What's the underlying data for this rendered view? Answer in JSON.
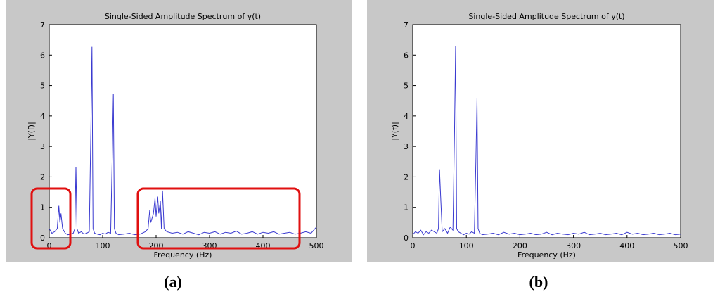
{
  "chart_data": [
    {
      "type": "line",
      "title": "Single-Sided Amplitude Spectrum of y(t)",
      "xlabel": "Frequency (Hz)",
      "ylabel": "|Y(f)|",
      "panel_label": "(a)",
      "color": "#3a3ad0",
      "x": [
        0,
        5,
        10,
        15,
        18,
        20,
        22,
        25,
        30,
        35,
        40,
        45,
        48,
        50,
        52,
        55,
        60,
        65,
        70,
        75,
        78,
        80,
        82,
        85,
        90,
        95,
        100,
        105,
        110,
        115,
        118,
        120,
        122,
        125,
        130,
        140,
        150,
        160,
        170,
        180,
        185,
        188,
        190,
        195,
        198,
        200,
        203,
        205,
        208,
        210,
        212,
        215,
        220,
        230,
        240,
        250,
        260,
        270,
        280,
        290,
        300,
        310,
        320,
        330,
        340,
        350,
        360,
        370,
        380,
        390,
        400,
        410,
        420,
        430,
        440,
        450,
        460,
        470,
        480,
        490,
        500
      ],
      "values": [
        0.3,
        0.15,
        0.2,
        0.3,
        1.05,
        0.5,
        0.8,
        0.3,
        0.15,
        0.1,
        0.12,
        0.15,
        0.3,
        2.33,
        0.3,
        0.15,
        0.2,
        0.12,
        0.15,
        0.2,
        3.6,
        6.27,
        0.3,
        0.15,
        0.12,
        0.1,
        0.15,
        0.12,
        0.18,
        0.15,
        2.7,
        4.72,
        0.3,
        0.15,
        0.1,
        0.12,
        0.15,
        0.1,
        0.12,
        0.2,
        0.3,
        0.9,
        0.5,
        0.8,
        1.3,
        0.7,
        1.35,
        0.8,
        1.2,
        0.3,
        1.55,
        0.3,
        0.2,
        0.15,
        0.18,
        0.12,
        0.2,
        0.15,
        0.1,
        0.18,
        0.15,
        0.2,
        0.12,
        0.18,
        0.15,
        0.22,
        0.12,
        0.15,
        0.2,
        0.12,
        0.18,
        0.15,
        0.2,
        0.12,
        0.15,
        0.18,
        0.12,
        0.15,
        0.2,
        0.15,
        0.35
      ],
      "xlim": [
        0,
        500
      ],
      "xticks": [
        0,
        100,
        200,
        300,
        400,
        500
      ],
      "ylim": [
        0,
        7
      ],
      "yticks": [
        0,
        1,
        2,
        3,
        4,
        5,
        6,
        7
      ]
    },
    {
      "type": "line",
      "title": "Single-Sided Amplitude Spectrum of y(t)",
      "xlabel": "Frequency (Hz)",
      "ylabel": "|Y(f)|",
      "panel_label": "(b)",
      "color": "#3a3ad0",
      "x": [
        0,
        5,
        10,
        15,
        20,
        25,
        30,
        35,
        40,
        45,
        48,
        50,
        52,
        55,
        60,
        65,
        70,
        75,
        78,
        80,
        82,
        85,
        90,
        95,
        100,
        105,
        110,
        115,
        118,
        120,
        122,
        125,
        130,
        140,
        150,
        160,
        170,
        180,
        190,
        200,
        210,
        220,
        230,
        240,
        250,
        260,
        270,
        280,
        290,
        300,
        310,
        320,
        330,
        340,
        350,
        360,
        370,
        380,
        390,
        400,
        410,
        420,
        430,
        440,
        450,
        460,
        470,
        480,
        490,
        500
      ],
      "values": [
        0.1,
        0.2,
        0.15,
        0.25,
        0.1,
        0.2,
        0.15,
        0.25,
        0.2,
        0.15,
        0.3,
        2.25,
        1.4,
        0.2,
        0.3,
        0.15,
        0.35,
        0.25,
        3.5,
        6.3,
        0.3,
        0.2,
        0.15,
        0.1,
        0.15,
        0.12,
        0.2,
        0.15,
        2.65,
        4.58,
        0.3,
        0.15,
        0.1,
        0.12,
        0.15,
        0.1,
        0.18,
        0.12,
        0.15,
        0.1,
        0.12,
        0.15,
        0.1,
        0.12,
        0.18,
        0.1,
        0.15,
        0.12,
        0.1,
        0.15,
        0.12,
        0.18,
        0.1,
        0.12,
        0.15,
        0.1,
        0.12,
        0.15,
        0.1,
        0.18,
        0.12,
        0.15,
        0.1,
        0.12,
        0.15,
        0.1,
        0.12,
        0.15,
        0.1,
        0.12
      ],
      "xlim": [
        0,
        500
      ],
      "xticks": [
        0,
        100,
        200,
        300,
        400,
        500
      ],
      "ylim": [
        0,
        7
      ],
      "yticks": [
        0,
        1,
        2,
        3,
        4,
        5,
        6,
        7
      ]
    }
  ]
}
